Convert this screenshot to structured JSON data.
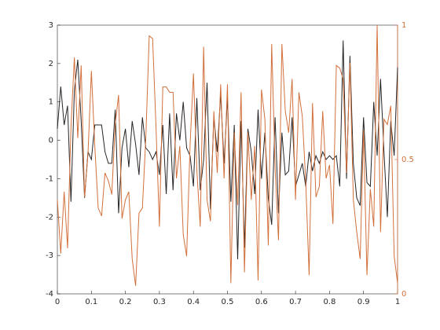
{
  "chart_data": {
    "type": "line",
    "x": [
      0,
      0.01,
      0.02,
      0.03,
      0.04,
      0.05,
      0.06,
      0.07,
      0.08,
      0.09,
      0.1,
      0.11,
      0.12,
      0.13,
      0.14,
      0.15,
      0.16,
      0.17,
      0.18,
      0.19,
      0.2,
      0.21,
      0.22,
      0.23,
      0.24,
      0.25,
      0.26,
      0.27,
      0.28,
      0.29,
      0.3,
      0.31,
      0.32,
      0.33,
      0.34,
      0.35,
      0.36,
      0.37,
      0.38,
      0.39,
      0.4,
      0.41,
      0.42,
      0.43,
      0.44,
      0.45,
      0.46,
      0.47,
      0.48,
      0.49,
      0.5,
      0.51,
      0.52,
      0.53,
      0.54,
      0.55,
      0.56,
      0.57,
      0.58,
      0.59,
      0.6,
      0.61,
      0.62,
      0.63,
      0.64,
      0.65,
      0.66,
      0.67,
      0.68,
      0.69,
      0.7,
      0.71,
      0.72,
      0.73,
      0.74,
      0.75,
      0.76,
      0.77,
      0.78,
      0.79,
      0.8,
      0.81,
      0.82,
      0.83,
      0.84,
      0.85,
      0.86,
      0.87,
      0.88,
      0.89,
      0.9,
      0.91,
      0.92,
      0.93,
      0.94,
      0.95,
      0.96,
      0.97,
      0.98,
      0.99,
      1
    ],
    "series": [
      {
        "color": "#262626",
        "axis": "y",
        "values": [
          0.3,
          1.4,
          0.4,
          0.9,
          -1.6,
          1.3,
          2.1,
          0.5,
          -1.5,
          -0.3,
          -0.5,
          0.4,
          0.4,
          0.4,
          -0.3,
          -0.6,
          -0.6,
          0.8,
          -1.9,
          -0.2,
          0.3,
          -0.7,
          0.5,
          -0.1,
          -0.9,
          0.6,
          -0.2,
          -0.3,
          -0.5,
          -0.3,
          -0.9,
          0.4,
          -1.4,
          0.7,
          -1.3,
          0.7,
          0.0,
          1.0,
          -0.2,
          -0.4,
          -1.2,
          1.1,
          -1.3,
          -0.5,
          1.5,
          -1.8,
          0.6,
          -0.3,
          1.2,
          -0.6,
          1.1,
          -1.6,
          0.4,
          -3.1,
          0.5,
          -2.8,
          0.3,
          -0.3,
          -1.4,
          0.8,
          -1.0,
          0.2,
          -1.5,
          -2.2,
          0.6,
          -1.9,
          0.2,
          -0.9,
          -0.8,
          0.6,
          -1.2,
          -0.9,
          -0.6,
          -1.2,
          -0.3,
          -0.8,
          -0.4,
          -0.6,
          -0.3,
          -0.5,
          -0.4,
          -0.5,
          -0.4,
          -1.2,
          2.6,
          -1.0,
          2.2,
          -0.6,
          -1.5,
          -1.7,
          0.6,
          -1.1,
          -1.2,
          1.0,
          -0.4,
          1.6,
          -0.3,
          -2.0,
          0.5,
          -0.4,
          1.9
        ]
      },
      {
        "color": "#d2703c",
        "axis": "y2",
        "values": [
          0.35,
          0.15,
          0.38,
          0.17,
          0.62,
          0.88,
          0.58,
          0.85,
          0.36,
          0.52,
          0.83,
          0.55,
          0.32,
          0.29,
          0.45,
          0.42,
          0.37,
          0.63,
          0.74,
          0.28,
          0.35,
          0.38,
          0.13,
          0.03,
          0.3,
          0.32,
          0.58,
          0.96,
          0.95,
          0.62,
          0.25,
          0.77,
          0.77,
          0.75,
          0.75,
          0.43,
          0.55,
          0.22,
          0.14,
          0.55,
          0.82,
          0.46,
          0.25,
          0.92,
          0.35,
          0.27,
          0.68,
          0.45,
          0.78,
          0.43,
          0.78,
          0.04,
          0.6,
          0.33,
          0.75,
          0.08,
          0.6,
          0.35,
          0.55,
          0.05,
          0.76,
          0.65,
          0.18,
          0.93,
          0.47,
          0.2,
          0.93,
          0.68,
          0.6,
          0.8,
          0.35,
          0.75,
          0.66,
          0.42,
          0.07,
          0.71,
          0.36,
          0.4,
          0.68,
          0.43,
          0.48,
          0.26,
          0.85,
          0.84,
          0.8,
          0.45,
          0.86,
          0.35,
          0.23,
          0.13,
          0.61,
          0.07,
          0.39,
          0.25,
          1.0,
          0.23,
          0.65,
          0.63,
          0.7,
          0.14,
          0.04
        ]
      }
    ],
    "xlim": [
      0,
      1
    ],
    "xticks": [
      0,
      0.1,
      0.2,
      0.3,
      0.4,
      0.5,
      0.6,
      0.7,
      0.8,
      0.9,
      1
    ],
    "ylim": [
      -4,
      3
    ],
    "yticks": [
      -4,
      -3,
      -2,
      -1,
      0,
      1,
      2,
      3
    ],
    "y2lim": [
      0,
      1
    ],
    "y2ticks": [
      0,
      0.5,
      1
    ]
  }
}
